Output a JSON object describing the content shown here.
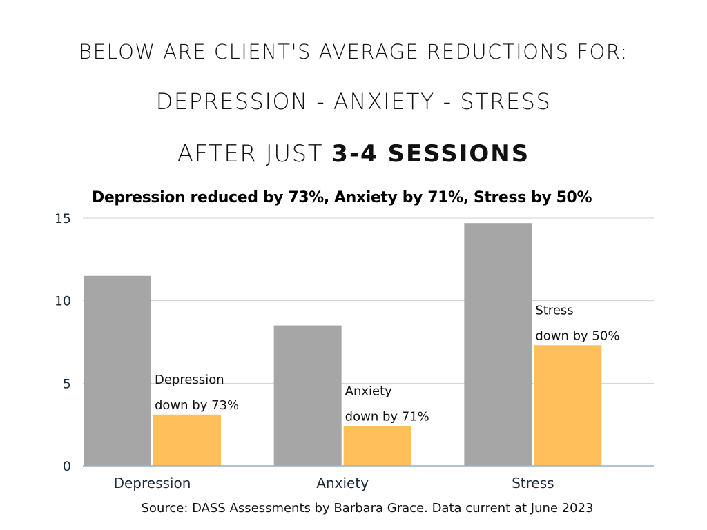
{
  "header": {
    "line1": "BELOW ARE CLIENT'S AVERAGE REDUCTIONS FOR:",
    "line2": "DEPRESSION - ANXIETY - STRESS",
    "line3_prefix": "AFTER JUST ",
    "line3_bold": "3-4 SESSIONS"
  },
  "chart_data": {
    "type": "bar",
    "title": "Depression reduced by 73%, Anxiety by 71%, Stress by 50%",
    "categories": [
      "Depression",
      "Anxiety",
      "Stress"
    ],
    "series": [
      {
        "values": [
          11.5,
          8.5,
          14.7
        ],
        "color": "#a6a6a6"
      },
      {
        "values": [
          3.1,
          2.4,
          7.3
        ],
        "color": "#ffbf5a"
      }
    ],
    "annotations": [
      {
        "category": "Depression",
        "line1": "Depression",
        "line2": "down by 73%"
      },
      {
        "category": "Anxiety",
        "line1": "Anxiety",
        "line2": "down by 71%"
      },
      {
        "category": "Stress",
        "line1": "Stress",
        "line2": "down by 50%"
      }
    ],
    "ylim": [
      0,
      15
    ],
    "yticks": [
      0,
      5,
      10,
      15
    ],
    "grid": true,
    "xlabel": "",
    "ylabel": ""
  },
  "footer": {
    "source": "Source: DASS Assessments by Barbara Grace. Data current at June 2023"
  }
}
